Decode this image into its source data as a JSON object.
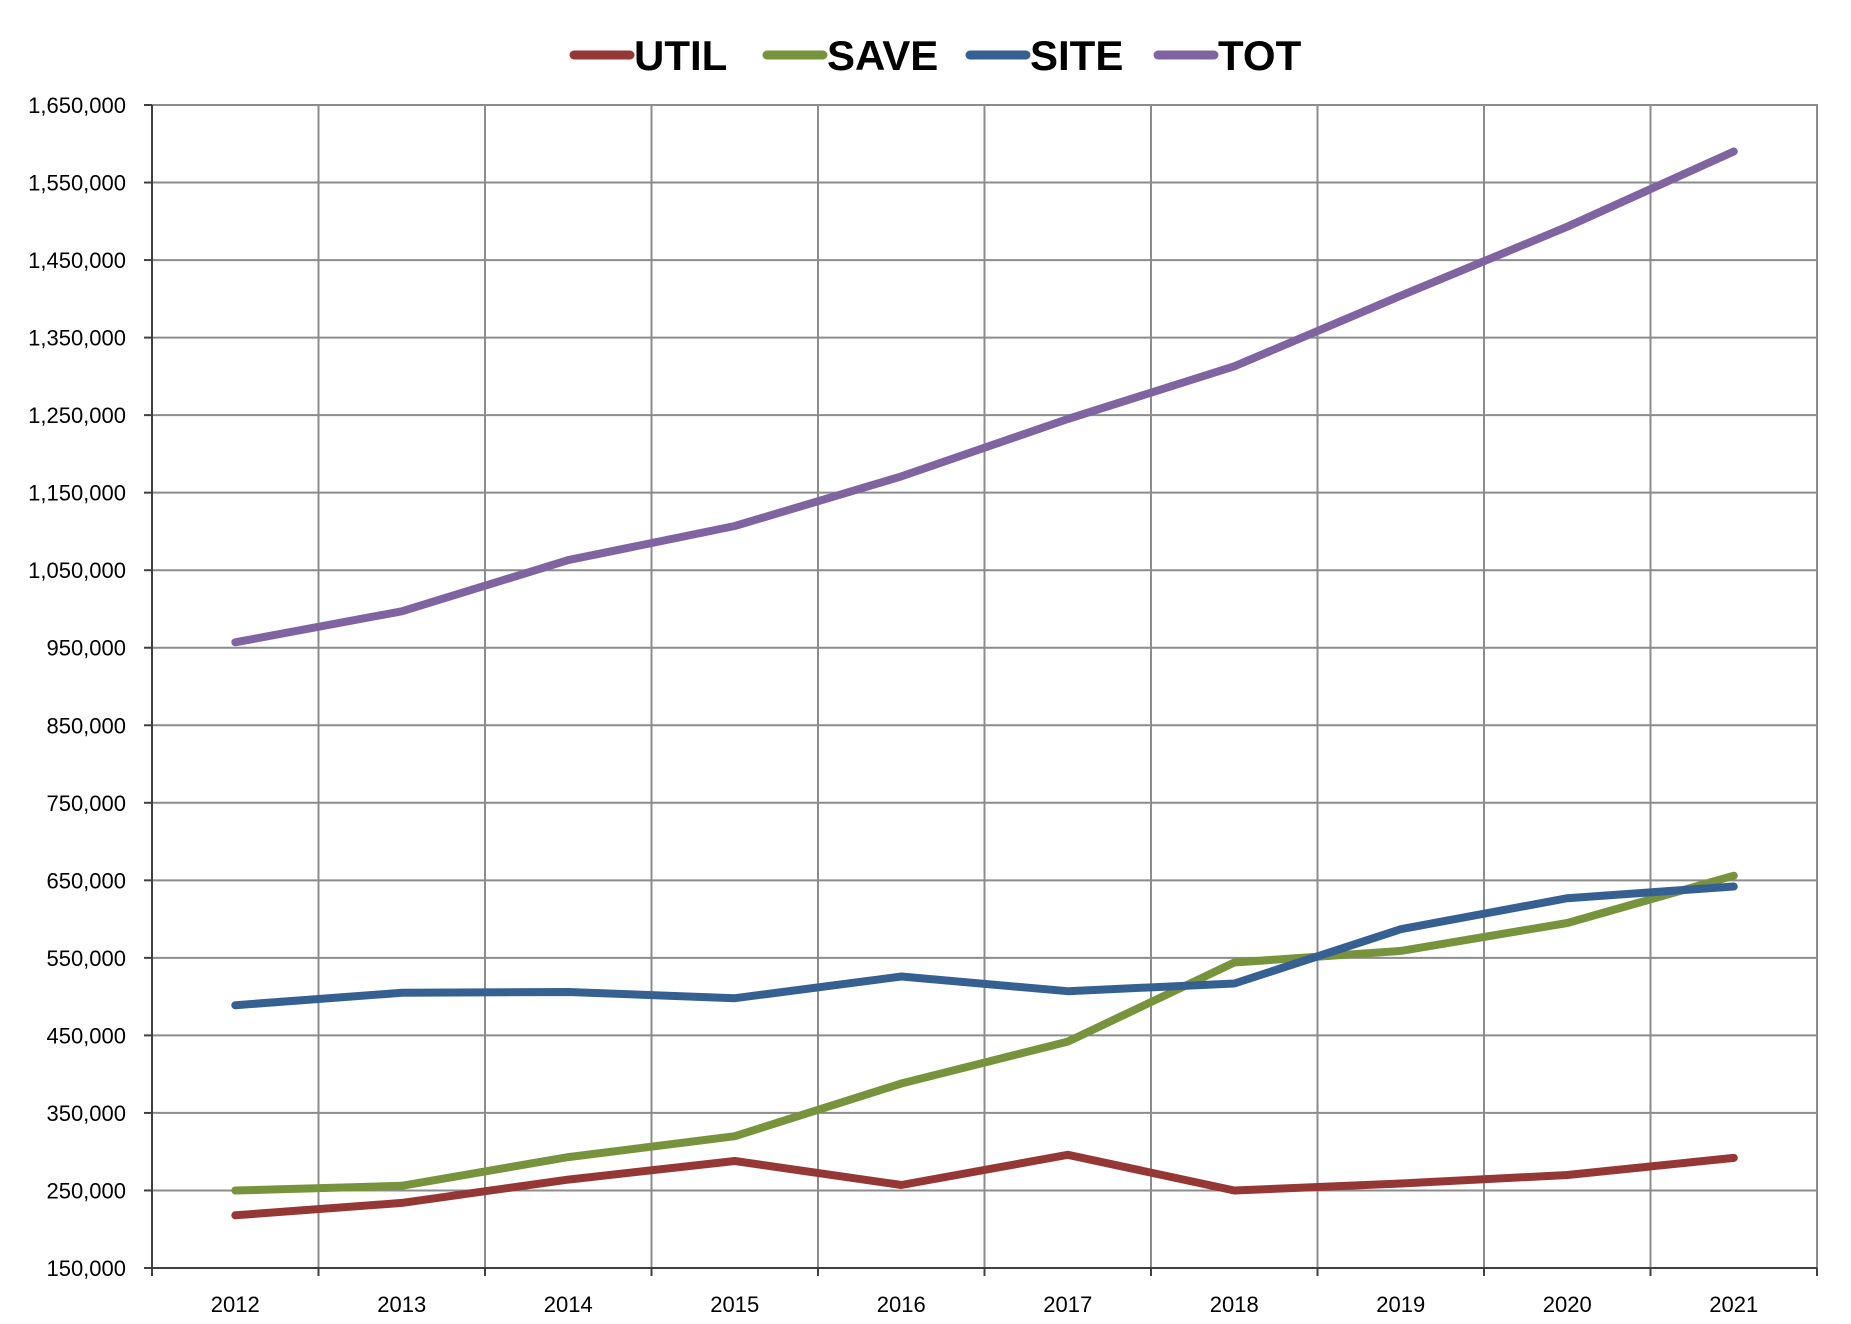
{
  "colors": {
    "util": "#953735",
    "save": "#77933c",
    "site": "#376092",
    "tot": "#8064a2",
    "grid": "#8c8c8c"
  },
  "chart_data": {
    "type": "line",
    "title": "",
    "xlabel": "",
    "ylabel": "",
    "categories": [
      "2012",
      "2013",
      "2014",
      "2015",
      "2016",
      "2017",
      "2018",
      "2019",
      "2020",
      "2021"
    ],
    "ylim": [
      150000,
      1650000
    ],
    "yticks": [
      150000,
      250000,
      350000,
      450000,
      550000,
      650000,
      750000,
      850000,
      950000,
      1050000,
      1150000,
      1250000,
      1350000,
      1450000,
      1550000,
      1650000
    ],
    "ytick_labels": [
      "150,000",
      "250,000",
      "350,000",
      "450,000",
      "550,000",
      "650,000",
      "750,000",
      "850,000",
      "950,000",
      "1,050,000",
      "1,150,000",
      "1,250,000",
      "1,350,000",
      "1,450,000",
      "1,550,000",
      "1,650,000"
    ],
    "grid": true,
    "legend_position": "top-center",
    "series": [
      {
        "name": "UTIL",
        "color": "#953735",
        "values": [
          218000,
          234000,
          264000,
          288000,
          257000,
          296000,
          250000,
          259000,
          270000,
          292000
        ]
      },
      {
        "name": "SAVE",
        "color": "#77933c",
        "values": [
          250000,
          256000,
          293000,
          320000,
          388000,
          442000,
          544000,
          559000,
          595000,
          656000
        ]
      },
      {
        "name": "SITE",
        "color": "#376092",
        "values": [
          489000,
          505000,
          506000,
          498000,
          526000,
          507000,
          517000,
          587000,
          627000,
          642000
        ]
      },
      {
        "name": "TOT",
        "color": "#8064a2",
        "values": [
          957000,
          997000,
          1063000,
          1107000,
          1171000,
          1245000,
          1313000,
          1404000,
          1493000,
          1590000
        ]
      }
    ]
  }
}
